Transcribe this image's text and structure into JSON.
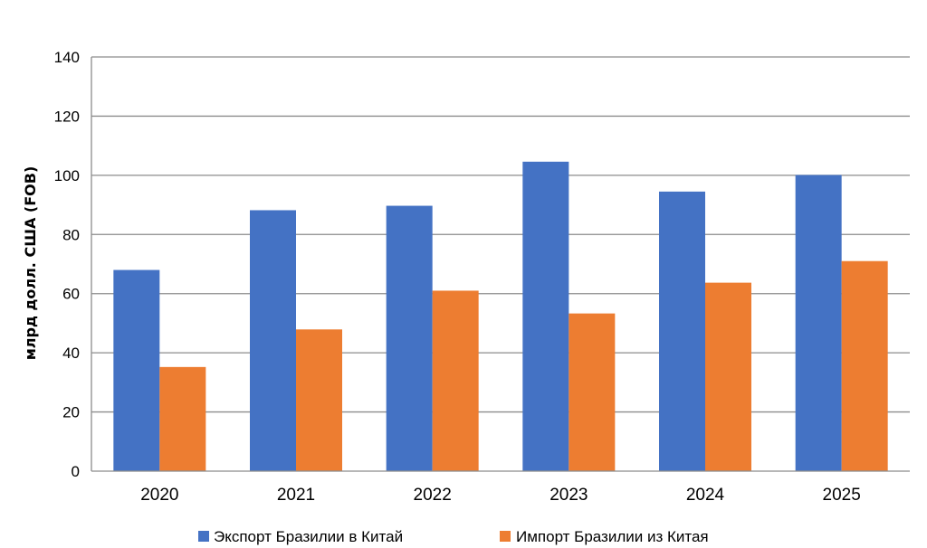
{
  "chart_data": {
    "type": "bar",
    "categories": [
      "2020",
      "2021",
      "2022",
      "2023",
      "2024",
      "2025"
    ],
    "series": [
      {
        "name": "Экспорт Бразилии в Китай",
        "color": "#4472C4",
        "values": [
          68,
          88.2,
          89.7,
          104.6,
          94.5,
          100.1
        ]
      },
      {
        "name": "Импорт Бразилии из Китая",
        "color": "#ED7D31",
        "values": [
          35.2,
          47.9,
          61,
          53.3,
          63.7,
          71
        ]
      }
    ],
    "ylabel": "млрд долл. США (FOB)",
    "xlabel": "",
    "ylim": [
      0,
      140
    ],
    "yticks": [
      0,
      20,
      40,
      60,
      80,
      100,
      120,
      140
    ],
    "grid": true,
    "legend_position": "bottom"
  }
}
